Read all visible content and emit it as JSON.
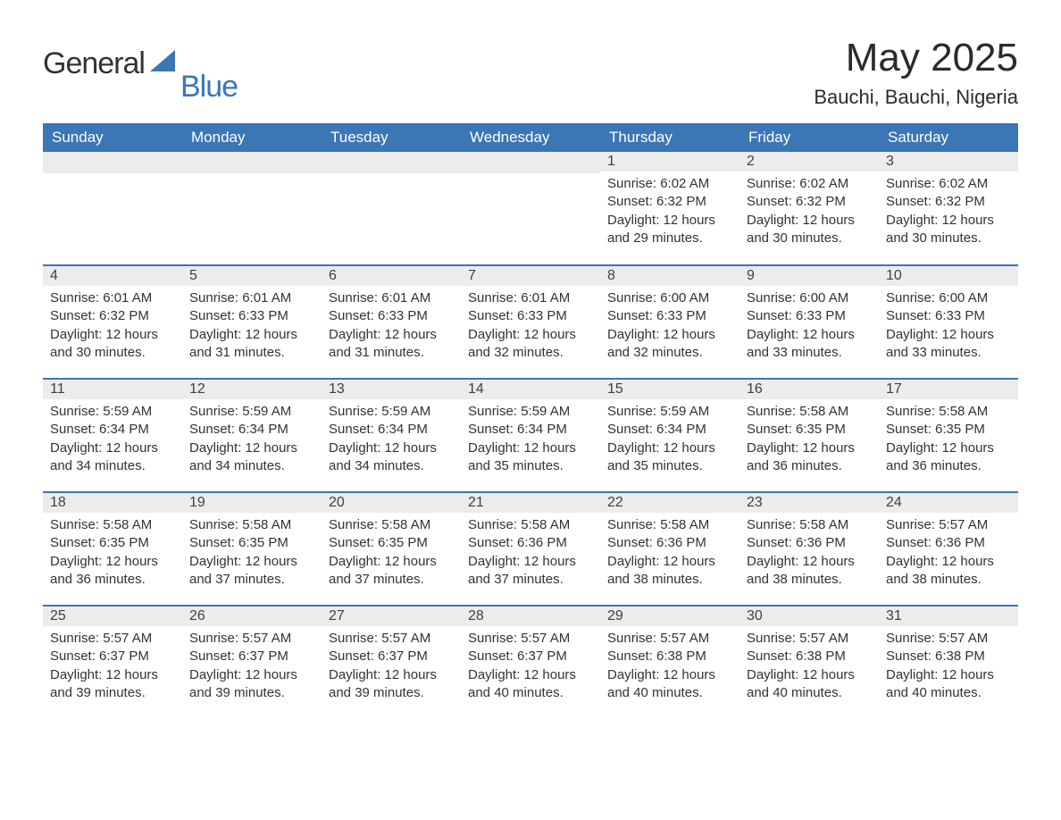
{
  "brand": {
    "text1": "General",
    "text2": "Blue"
  },
  "title": "May 2025",
  "subtitle": "Bauchi, Bauchi, Nigeria",
  "colors": {
    "header_bg": "#3b76b5",
    "header_fg": "#ffffff",
    "daynum_bg": "#ececec",
    "daynum_border": "#3b76b5",
    "text": "#333333",
    "brand_accent": "#3b76b5",
    "page_bg": "#ffffff"
  },
  "typography": {
    "title_fontsize": 44,
    "subtitle_fontsize": 22,
    "header_fontsize": 17,
    "daynum_fontsize": 16,
    "body_fontsize": 15
  },
  "weekdays": [
    "Sunday",
    "Monday",
    "Tuesday",
    "Wednesday",
    "Thursday",
    "Friday",
    "Saturday"
  ],
  "weeks": [
    [
      {
        "empty": true
      },
      {
        "empty": true
      },
      {
        "empty": true
      },
      {
        "empty": true
      },
      {
        "n": "1",
        "sunrise": "6:02 AM",
        "sunset": "6:32 PM",
        "daylight": "12 hours and 29 minutes."
      },
      {
        "n": "2",
        "sunrise": "6:02 AM",
        "sunset": "6:32 PM",
        "daylight": "12 hours and 30 minutes."
      },
      {
        "n": "3",
        "sunrise": "6:02 AM",
        "sunset": "6:32 PM",
        "daylight": "12 hours and 30 minutes."
      }
    ],
    [
      {
        "n": "4",
        "sunrise": "6:01 AM",
        "sunset": "6:32 PM",
        "daylight": "12 hours and 30 minutes."
      },
      {
        "n": "5",
        "sunrise": "6:01 AM",
        "sunset": "6:33 PM",
        "daylight": "12 hours and 31 minutes."
      },
      {
        "n": "6",
        "sunrise": "6:01 AM",
        "sunset": "6:33 PM",
        "daylight": "12 hours and 31 minutes."
      },
      {
        "n": "7",
        "sunrise": "6:01 AM",
        "sunset": "6:33 PM",
        "daylight": "12 hours and 32 minutes."
      },
      {
        "n": "8",
        "sunrise": "6:00 AM",
        "sunset": "6:33 PM",
        "daylight": "12 hours and 32 minutes."
      },
      {
        "n": "9",
        "sunrise": "6:00 AM",
        "sunset": "6:33 PM",
        "daylight": "12 hours and 33 minutes."
      },
      {
        "n": "10",
        "sunrise": "6:00 AM",
        "sunset": "6:33 PM",
        "daylight": "12 hours and 33 minutes."
      }
    ],
    [
      {
        "n": "11",
        "sunrise": "5:59 AM",
        "sunset": "6:34 PM",
        "daylight": "12 hours and 34 minutes."
      },
      {
        "n": "12",
        "sunrise": "5:59 AM",
        "sunset": "6:34 PM",
        "daylight": "12 hours and 34 minutes."
      },
      {
        "n": "13",
        "sunrise": "5:59 AM",
        "sunset": "6:34 PM",
        "daylight": "12 hours and 34 minutes."
      },
      {
        "n": "14",
        "sunrise": "5:59 AM",
        "sunset": "6:34 PM",
        "daylight": "12 hours and 35 minutes."
      },
      {
        "n": "15",
        "sunrise": "5:59 AM",
        "sunset": "6:34 PM",
        "daylight": "12 hours and 35 minutes."
      },
      {
        "n": "16",
        "sunrise": "5:58 AM",
        "sunset": "6:35 PM",
        "daylight": "12 hours and 36 minutes."
      },
      {
        "n": "17",
        "sunrise": "5:58 AM",
        "sunset": "6:35 PM",
        "daylight": "12 hours and 36 minutes."
      }
    ],
    [
      {
        "n": "18",
        "sunrise": "5:58 AM",
        "sunset": "6:35 PM",
        "daylight": "12 hours and 36 minutes."
      },
      {
        "n": "19",
        "sunrise": "5:58 AM",
        "sunset": "6:35 PM",
        "daylight": "12 hours and 37 minutes."
      },
      {
        "n": "20",
        "sunrise": "5:58 AM",
        "sunset": "6:35 PM",
        "daylight": "12 hours and 37 minutes."
      },
      {
        "n": "21",
        "sunrise": "5:58 AM",
        "sunset": "6:36 PM",
        "daylight": "12 hours and 37 minutes."
      },
      {
        "n": "22",
        "sunrise": "5:58 AM",
        "sunset": "6:36 PM",
        "daylight": "12 hours and 38 minutes."
      },
      {
        "n": "23",
        "sunrise": "5:58 AM",
        "sunset": "6:36 PM",
        "daylight": "12 hours and 38 minutes."
      },
      {
        "n": "24",
        "sunrise": "5:57 AM",
        "sunset": "6:36 PM",
        "daylight": "12 hours and 38 minutes."
      }
    ],
    [
      {
        "n": "25",
        "sunrise": "5:57 AM",
        "sunset": "6:37 PM",
        "daylight": "12 hours and 39 minutes."
      },
      {
        "n": "26",
        "sunrise": "5:57 AM",
        "sunset": "6:37 PM",
        "daylight": "12 hours and 39 minutes."
      },
      {
        "n": "27",
        "sunrise": "5:57 AM",
        "sunset": "6:37 PM",
        "daylight": "12 hours and 39 minutes."
      },
      {
        "n": "28",
        "sunrise": "5:57 AM",
        "sunset": "6:37 PM",
        "daylight": "12 hours and 40 minutes."
      },
      {
        "n": "29",
        "sunrise": "5:57 AM",
        "sunset": "6:38 PM",
        "daylight": "12 hours and 40 minutes."
      },
      {
        "n": "30",
        "sunrise": "5:57 AM",
        "sunset": "6:38 PM",
        "daylight": "12 hours and 40 minutes."
      },
      {
        "n": "31",
        "sunrise": "5:57 AM",
        "sunset": "6:38 PM",
        "daylight": "12 hours and 40 minutes."
      }
    ]
  ],
  "labels": {
    "sunrise_prefix": "Sunrise: ",
    "sunset_prefix": "Sunset: ",
    "daylight_prefix": "Daylight: "
  }
}
